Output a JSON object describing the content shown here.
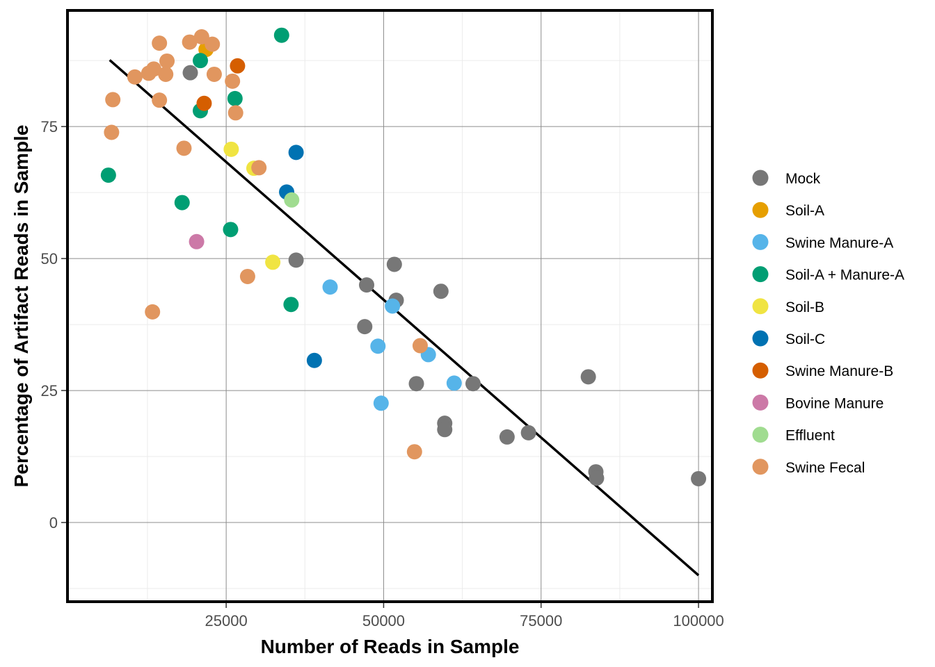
{
  "chart_data": {
    "type": "scatter",
    "xlabel": "Number of Reads in Sample",
    "ylabel": "Percentage of Artifact Reads in Sample",
    "xlim": [
      -200,
      102200
    ],
    "ylim": [
      -15,
      97
    ],
    "x_ticks": [
      25000,
      50000,
      75000,
      100000
    ],
    "x_tick_labels": [
      "25000",
      "50000",
      "75000",
      "100000"
    ],
    "y_ticks": [
      0,
      25,
      50,
      75
    ],
    "y_tick_labels": [
      "0",
      "25",
      "50",
      "75"
    ],
    "x_minor_ticks": [
      12500,
      37500,
      62500,
      87500
    ],
    "y_minor_ticks": [
      -12.5,
      12.5,
      37.5,
      62.5,
      87.5
    ],
    "grid": true,
    "legend_position": "right",
    "trend_line": {
      "x": [
        6500,
        100000
      ],
      "y": [
        87.6,
        -10
      ]
    },
    "series": [
      {
        "name": "Mock",
        "color": "#777777",
        "points": [
          [
            19300,
            85.2
          ],
          [
            36100,
            49.7
          ],
          [
            47300,
            45
          ],
          [
            47000,
            37.1
          ],
          [
            51700,
            48.9
          ],
          [
            52000,
            42.1
          ],
          [
            59100,
            43.8
          ],
          [
            55200,
            26.3
          ],
          [
            64200,
            26.3
          ],
          [
            59700,
            18.8
          ],
          [
            59700,
            17.6
          ],
          [
            69600,
            16.2
          ],
          [
            73000,
            17
          ],
          [
            82500,
            27.6
          ],
          [
            83700,
            9.6
          ],
          [
            83800,
            8.4
          ],
          [
            100000,
            8.3
          ]
        ]
      },
      {
        "name": "Soil-A",
        "color": "#E69F00",
        "points": [
          [
            21800,
            89.6
          ]
        ]
      },
      {
        "name": "Swine Manure-A",
        "color": "#56B4E9",
        "points": [
          [
            41500,
            44.6
          ],
          [
            51400,
            41
          ],
          [
            49100,
            33.4
          ],
          [
            57100,
            31.8
          ],
          [
            61200,
            26.4
          ],
          [
            49600,
            22.6
          ]
        ]
      },
      {
        "name": "Soil-A + Manure-A",
        "color": "#009E73",
        "points": [
          [
            33800,
            92.3
          ],
          [
            20900,
            87.5
          ],
          [
            20900,
            78
          ],
          [
            26400,
            80.3
          ],
          [
            6300,
            65.8
          ],
          [
            18000,
            60.6
          ],
          [
            25700,
            55.5
          ],
          [
            35300,
            41.3
          ]
        ]
      },
      {
        "name": "Soil-B",
        "color": "#F0E442",
        "points": [
          [
            25800,
            70.7
          ],
          [
            29400,
            67.1
          ],
          [
            32400,
            49.3
          ]
        ]
      },
      {
        "name": "Soil-C",
        "color": "#0072B2",
        "points": [
          [
            36100,
            70.1
          ],
          [
            34600,
            62.6
          ],
          [
            39000,
            30.7
          ]
        ]
      },
      {
        "name": "Swine Manure-B",
        "color": "#D55E00",
        "points": [
          [
            26800,
            86.5
          ],
          [
            21500,
            79.4
          ]
        ]
      },
      {
        "name": "Bovine Manure",
        "color": "#CC79A7",
        "points": [
          [
            20300,
            53.2
          ]
        ]
      },
      {
        "name": "Effluent",
        "color": "#A0DC90",
        "points": [
          [
            35400,
            61.1
          ]
        ]
      },
      {
        "name": "Swine Fecal",
        "color": "#E1965F",
        "points": [
          [
            21100,
            92
          ],
          [
            19200,
            91
          ],
          [
            22800,
            90.6
          ],
          [
            14400,
            90.8
          ],
          [
            15600,
            87.4
          ],
          [
            13500,
            85.9
          ],
          [
            12700,
            85.1
          ],
          [
            15400,
            84.9
          ],
          [
            10500,
            84.4
          ],
          [
            23100,
            84.9
          ],
          [
            26000,
            83.6
          ],
          [
            7000,
            80.1
          ],
          [
            14400,
            80
          ],
          [
            26500,
            77.6
          ],
          [
            6800,
            73.9
          ],
          [
            18300,
            70.9
          ],
          [
            30200,
            67.2
          ],
          [
            28400,
            46.6
          ],
          [
            13300,
            39.9
          ],
          [
            55800,
            33.5
          ],
          [
            54900,
            13.4
          ]
        ]
      }
    ]
  }
}
